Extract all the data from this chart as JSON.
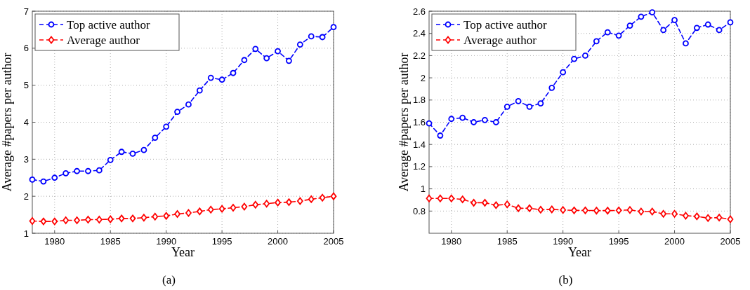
{
  "chart_data": [
    {
      "type": "line",
      "xlabel": "Year",
      "ylabel": "Average #papers per author",
      "annotations": [
        "(a)"
      ],
      "x": [
        1978,
        1979,
        1980,
        1981,
        1982,
        1983,
        1984,
        1985,
        1986,
        1987,
        1988,
        1989,
        1990,
        1991,
        1992,
        1993,
        1994,
        1995,
        1996,
        1997,
        1998,
        1999,
        2000,
        2001,
        2002,
        2003,
        2004,
        2005
      ],
      "xlim": [
        1978,
        2005
      ],
      "xticks": [
        1980,
        1985,
        1990,
        1995,
        2000,
        2005
      ],
      "ylim": [
        1,
        7
      ],
      "yticks": [
        1,
        2,
        3,
        4,
        5,
        6,
        7
      ],
      "grid": true,
      "legend": "top left",
      "line_style": "dashed",
      "series": [
        {
          "name": "Top active author",
          "color": "#0000ff",
          "marker": "circle",
          "values": [
            2.45,
            2.4,
            2.5,
            2.62,
            2.68,
            2.68,
            2.7,
            2.98,
            3.2,
            3.15,
            3.25,
            3.58,
            3.88,
            4.28,
            4.48,
            4.86,
            5.2,
            5.15,
            5.33,
            5.68,
            5.98,
            5.73,
            5.92,
            5.66,
            6.1,
            6.32,
            6.3,
            6.57
          ]
        },
        {
          "name": "Average author",
          "color": "#ff0000",
          "marker": "diamond",
          "values": [
            1.33,
            1.32,
            1.32,
            1.35,
            1.35,
            1.37,
            1.37,
            1.38,
            1.4,
            1.4,
            1.42,
            1.45,
            1.47,
            1.52,
            1.55,
            1.59,
            1.64,
            1.66,
            1.69,
            1.72,
            1.77,
            1.8,
            1.83,
            1.84,
            1.87,
            1.92,
            1.96,
            2.0
          ]
        }
      ]
    },
    {
      "type": "line",
      "xlabel": "Year",
      "ylabel": "Average #papers per author",
      "annotations": [
        "(b)"
      ],
      "x": [
        1978,
        1979,
        1980,
        1981,
        1982,
        1983,
        1984,
        1985,
        1986,
        1987,
        1988,
        1989,
        1990,
        1991,
        1992,
        1993,
        1994,
        1995,
        1996,
        1997,
        1998,
        1999,
        2000,
        2001,
        2002,
        2003,
        2004,
        2005
      ],
      "xlim": [
        1978,
        2005
      ],
      "xticks": [
        1980,
        1985,
        1990,
        1995,
        2000,
        2005
      ],
      "ylim": [
        0.6,
        2.6
      ],
      "yticks": [
        0.8,
        1,
        1.2,
        1.4,
        1.6,
        1.8,
        2,
        2.2,
        2.4,
        2.6
      ],
      "grid": true,
      "legend": "top left",
      "line_style": "dashed",
      "series": [
        {
          "name": "Top active author",
          "color": "#0000ff",
          "marker": "circle",
          "values": [
            1.59,
            1.48,
            1.63,
            1.64,
            1.6,
            1.62,
            1.6,
            1.74,
            1.79,
            1.74,
            1.77,
            1.91,
            2.05,
            2.17,
            2.2,
            2.33,
            2.41,
            2.38,
            2.47,
            2.55,
            2.59,
            2.43,
            2.52,
            2.31,
            2.45,
            2.48,
            2.43,
            2.5
          ]
        },
        {
          "name": "Average author",
          "color": "#ff0000",
          "marker": "diamond",
          "values": [
            0.914,
            0.914,
            0.914,
            0.905,
            0.875,
            0.875,
            0.853,
            0.86,
            0.825,
            0.825,
            0.812,
            0.815,
            0.81,
            0.806,
            0.806,
            0.804,
            0.804,
            0.806,
            0.81,
            0.796,
            0.796,
            0.775,
            0.775,
            0.758,
            0.752,
            0.737,
            0.741,
            0.726
          ]
        }
      ]
    }
  ]
}
